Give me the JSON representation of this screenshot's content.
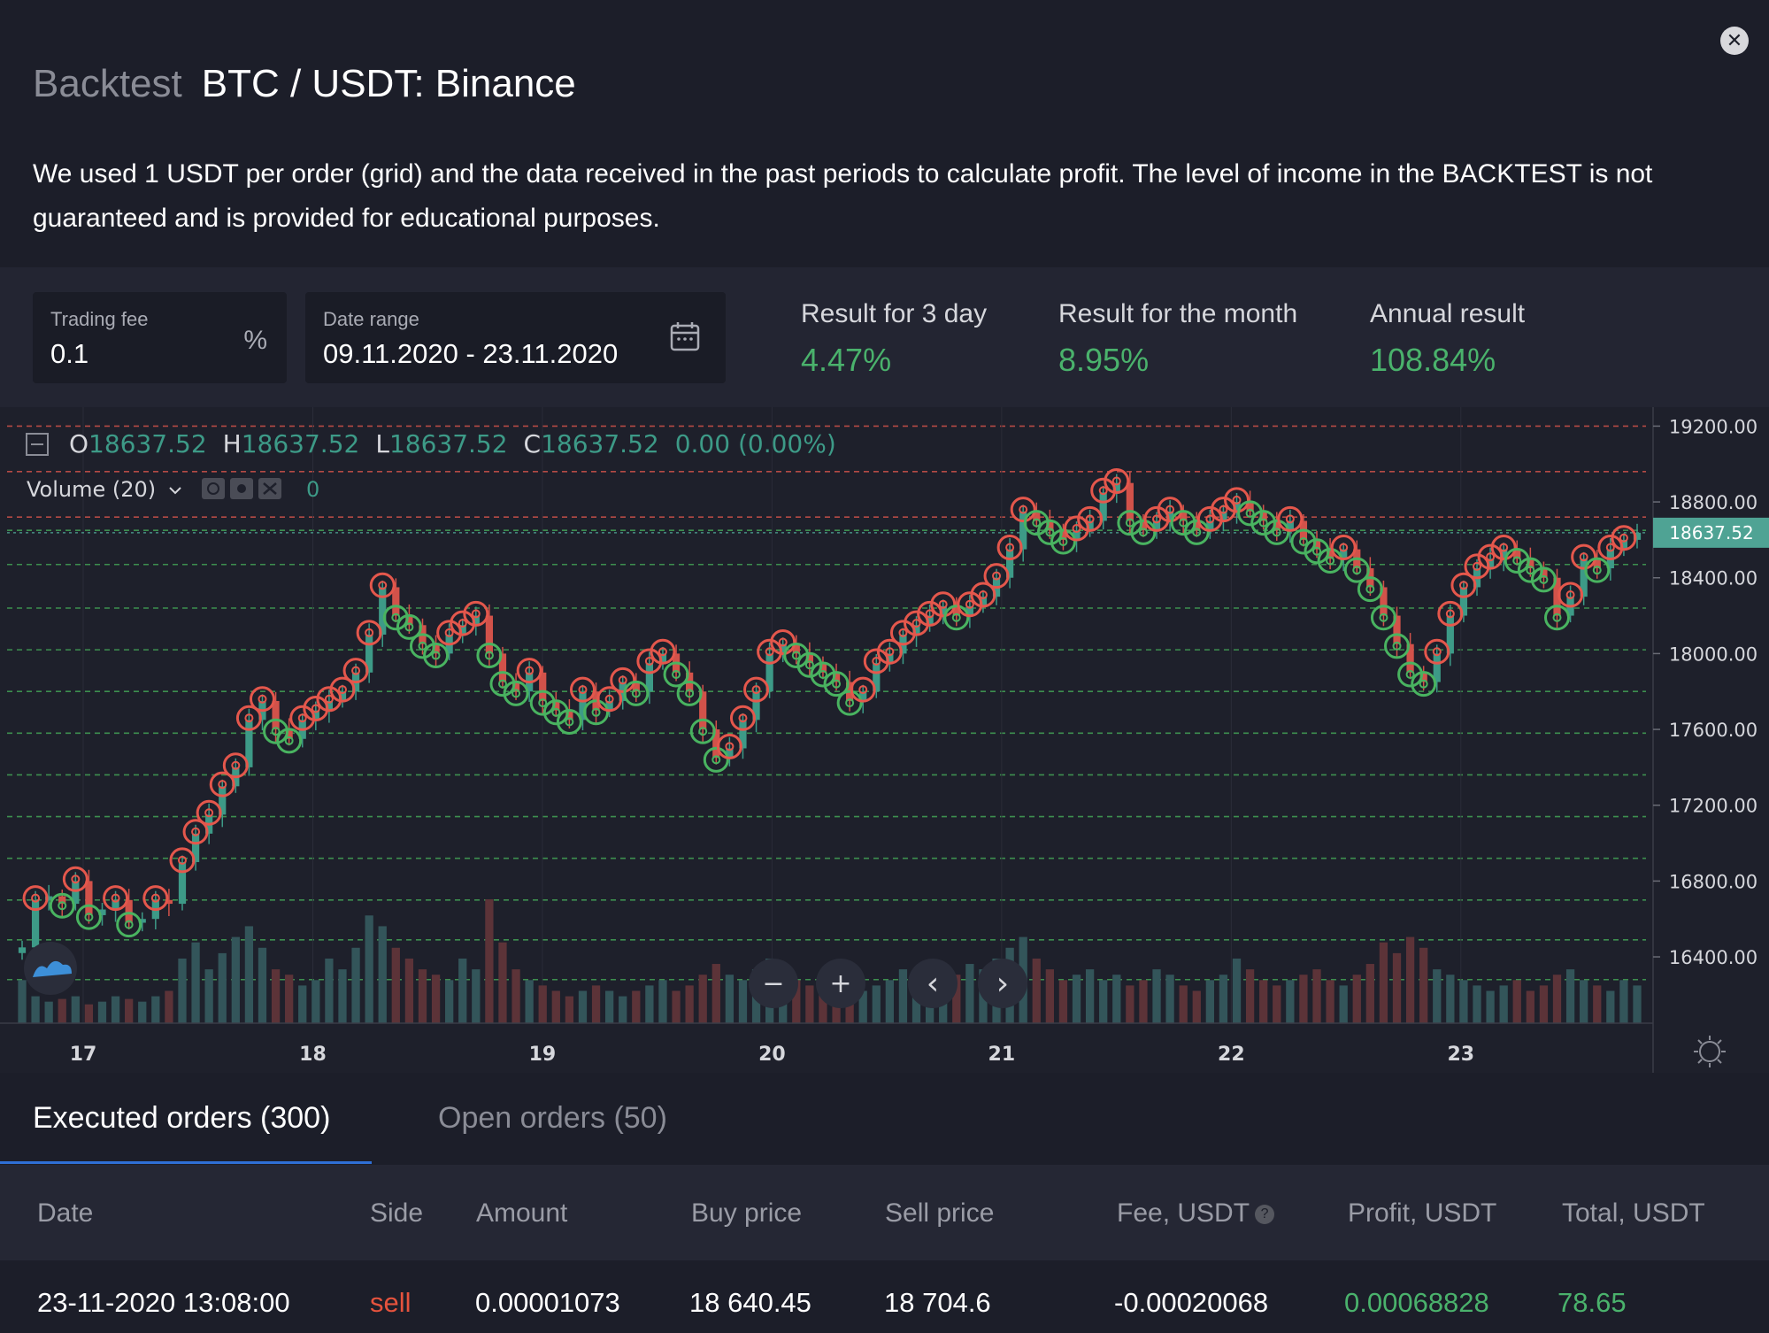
{
  "modal": {
    "title_prefix": "Backtest",
    "title_pair": "BTC / USDT: Binance",
    "description": "We used 1 USDT per order (grid) and the data received in the past periods to calculate profit. The level of income in the BACKTEST is not guaranteed and is provided for educational purposes."
  },
  "settings": {
    "fee_label": "Trading fee",
    "fee_value": "0.1",
    "fee_unit": "%",
    "date_label": "Date range",
    "date_value": "09.11.2020 - 23.11.2020"
  },
  "results": [
    {
      "label": "Result for 3 day",
      "value": "4.47%"
    },
    {
      "label": "Result for the month",
      "value": "8.95%"
    },
    {
      "label": "Annual result",
      "value": "108.84%"
    }
  ],
  "legend": {
    "o": "O",
    "o_val": "18637.52",
    "h": "H",
    "h_val": "18637.52",
    "l": "L",
    "l_val": "18637.52",
    "c": "C",
    "c_val": "18637.52",
    "change": "0.00 (0.00%)",
    "volume_label": "Volume (20)",
    "volume_value": "0"
  },
  "chart_data": {
    "type": "candlestick",
    "x_ticks": [
      "17",
      "18",
      "19",
      "20",
      "21",
      "22",
      "23"
    ],
    "y_ticks": [
      "19200.00",
      "18800.00",
      "18400.00",
      "18000.00",
      "17600.00",
      "17200.00",
      "16800.00",
      "16400.00"
    ],
    "ylim": [
      16050,
      19300
    ],
    "last_price": "18637.52",
    "grid_sell_levels": [
      19200,
      18960,
      18720
    ],
    "grid_buy_levels": [
      18650,
      18470,
      18240,
      18020,
      17800,
      17580,
      17360,
      17140,
      16920,
      16700,
      16490,
      16280
    ],
    "close": [
      16450,
      16700,
      16720,
      16680,
      16800,
      16620,
      16650,
      16700,
      16580,
      16600,
      16700,
      16680,
      16900,
      17050,
      17150,
      17300,
      17400,
      17650,
      17750,
      17600,
      17550,
      17650,
      17700,
      17750,
      17800,
      17900,
      18100,
      18350,
      18200,
      18150,
      18050,
      18000,
      18100,
      18150,
      18200,
      18000,
      17850,
      17800,
      17900,
      17750,
      17700,
      17650,
      17800,
      17700,
      17750,
      17850,
      17800,
      17950,
      18000,
      17900,
      17800,
      17600,
      17450,
      17500,
      17650,
      17800,
      18000,
      18050,
      18000,
      17950,
      17900,
      17850,
      17750,
      17800,
      17950,
      18000,
      18100,
      18150,
      18200,
      18250,
      18200,
      18250,
      18300,
      18400,
      18550,
      18750,
      18700,
      18650,
      18600,
      18650,
      18700,
      18850,
      18900,
      18700,
      18650,
      18700,
      18750,
      18700,
      18650,
      18700,
      18750,
      18800,
      18750,
      18700,
      18650,
      18700,
      18600,
      18550,
      18500,
      18550,
      18450,
      18350,
      18200,
      18050,
      17900,
      17850,
      18000,
      18200,
      18350,
      18450,
      18500,
      18550,
      18500,
      18450,
      18400,
      18200,
      18300,
      18500,
      18450,
      18550,
      18600,
      18637.52
    ],
    "volume": [
      0.8,
      0.5,
      0.4,
      0.45,
      0.5,
      0.35,
      0.4,
      0.5,
      0.45,
      0.4,
      0.5,
      0.6,
      1.2,
      1.5,
      1.0,
      1.3,
      1.6,
      1.8,
      1.4,
      1.0,
      0.9,
      0.7,
      0.8,
      1.2,
      1.0,
      1.4,
      2.0,
      1.8,
      1.4,
      1.2,
      1.0,
      0.9,
      0.8,
      1.2,
      1.0,
      2.3,
      1.5,
      1.0,
      0.8,
      0.7,
      0.6,
      0.5,
      0.6,
      0.7,
      0.6,
      0.5,
      0.6,
      0.7,
      0.8,
      0.6,
      0.7,
      0.9,
      1.1,
      0.9,
      0.8,
      1.0,
      1.2,
      0.9,
      0.8,
      0.7,
      0.6,
      0.7,
      0.8,
      0.6,
      0.7,
      0.8,
      1.0,
      0.9,
      0.7,
      0.8,
      0.9,
      1.1,
      1.0,
      1.2,
      1.4,
      1.6,
      1.2,
      1.0,
      0.8,
      0.9,
      1.0,
      0.8,
      0.9,
      0.7,
      0.8,
      1.0,
      0.9,
      0.7,
      0.6,
      0.8,
      0.9,
      1.2,
      1.0,
      0.8,
      0.7,
      0.8,
      0.9,
      1.0,
      0.8,
      0.7,
      0.9,
      1.1,
      1.5,
      1.3,
      1.6,
      1.4,
      1.0,
      0.9,
      0.8,
      0.7,
      0.6,
      0.7,
      0.8,
      0.6,
      0.7,
      0.9,
      1.0,
      0.8,
      0.7,
      0.6,
      0.8,
      0.7
    ]
  },
  "controls": {
    "zoom_out": "−",
    "zoom_in": "+",
    "prev": "‹",
    "next": "›"
  },
  "tabs": [
    {
      "label": "Executed orders (300)",
      "active": true
    },
    {
      "label": "Open orders (50)",
      "active": false
    }
  ],
  "table": {
    "headers": [
      "Date",
      "Side",
      "Amount",
      "Buy price",
      "Sell price",
      "Fee, USDT",
      "Profit, USDT",
      "Total, USDT"
    ],
    "fee_help": "?",
    "rows": [
      {
        "date": "23-11-2020 13:08:00",
        "side": "sell",
        "amount": "0.00001073",
        "buy": "18 640.45",
        "sell": "18 704.6",
        "fee": "-0.00020068",
        "profit": "0.00068828",
        "total": "78.65"
      }
    ]
  },
  "colors": {
    "up": "#3d9a87",
    "down": "#d2524a",
    "buy_marker": "#49b360",
    "sell_marker": "#e4574c",
    "price_tag": "#4fa394",
    "result_green": "#4ab26c",
    "tab_accent": "#2f6fd6"
  }
}
